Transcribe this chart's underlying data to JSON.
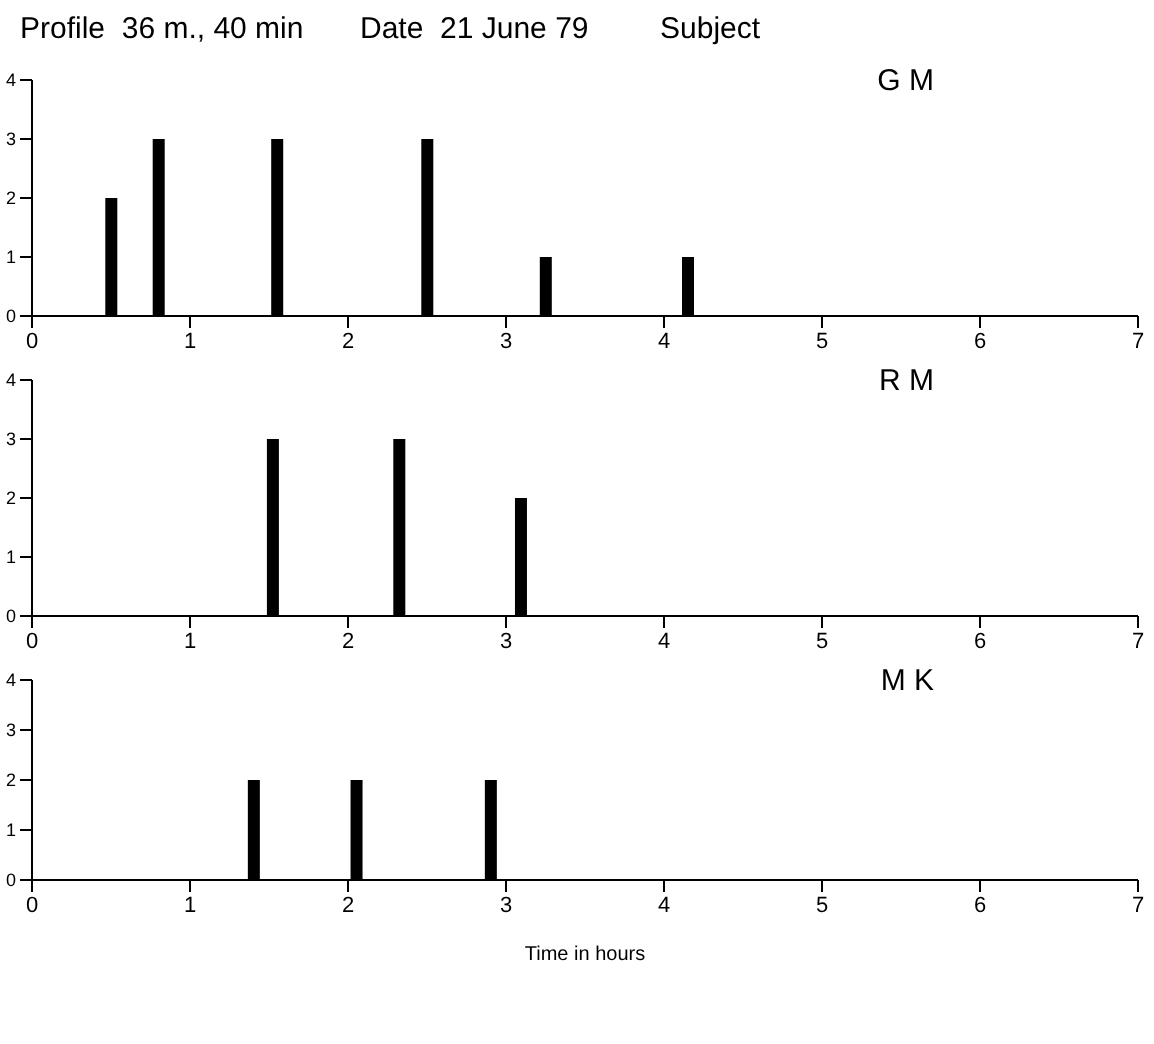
{
  "chart_data": [
    {
      "type": "bar",
      "title": "G M",
      "annotations": [
        "Profile  36 m., 40 min",
        "Date  21 June 79",
        "Subject"
      ],
      "x": [
        0.5,
        0.8,
        1.55,
        2.5,
        3.25,
        4.15
      ],
      "values": [
        2,
        3,
        3,
        3,
        1,
        1
      ],
      "color": "#000000",
      "xlim": [
        0,
        7
      ],
      "xticks": [
        0,
        1,
        2,
        3,
        4,
        5,
        6,
        7
      ],
      "ylim": [
        0,
        4
      ],
      "yticks": [
        0,
        1,
        2,
        3,
        4
      ],
      "grid": false,
      "legend": false
    },
    {
      "type": "bar",
      "title": "R M",
      "x": [
        1.53,
        2.33,
        3.1
      ],
      "values": [
        3,
        3,
        2
      ],
      "color": "#000000",
      "xlim": [
        0,
        7
      ],
      "xticks": [
        0,
        1,
        2,
        3,
        4,
        5,
        6,
        7
      ],
      "ylim": [
        0,
        4
      ],
      "yticks": [
        0,
        1,
        2,
        3,
        4
      ],
      "grid": false,
      "legend": false
    },
    {
      "type": "bar",
      "title": "M K",
      "xlabel": "Time in hours",
      "x": [
        1.4,
        2.05,
        2.9
      ],
      "values": [
        2,
        2,
        2
      ],
      "color": "#000000",
      "xlim": [
        0,
        7
      ],
      "xticks": [
        0,
        1,
        2,
        3,
        4,
        5,
        6,
        7
      ],
      "ylim": [
        0,
        4
      ],
      "yticks": [
        0,
        1,
        2,
        3,
        4
      ],
      "grid": false,
      "legend": false
    }
  ]
}
